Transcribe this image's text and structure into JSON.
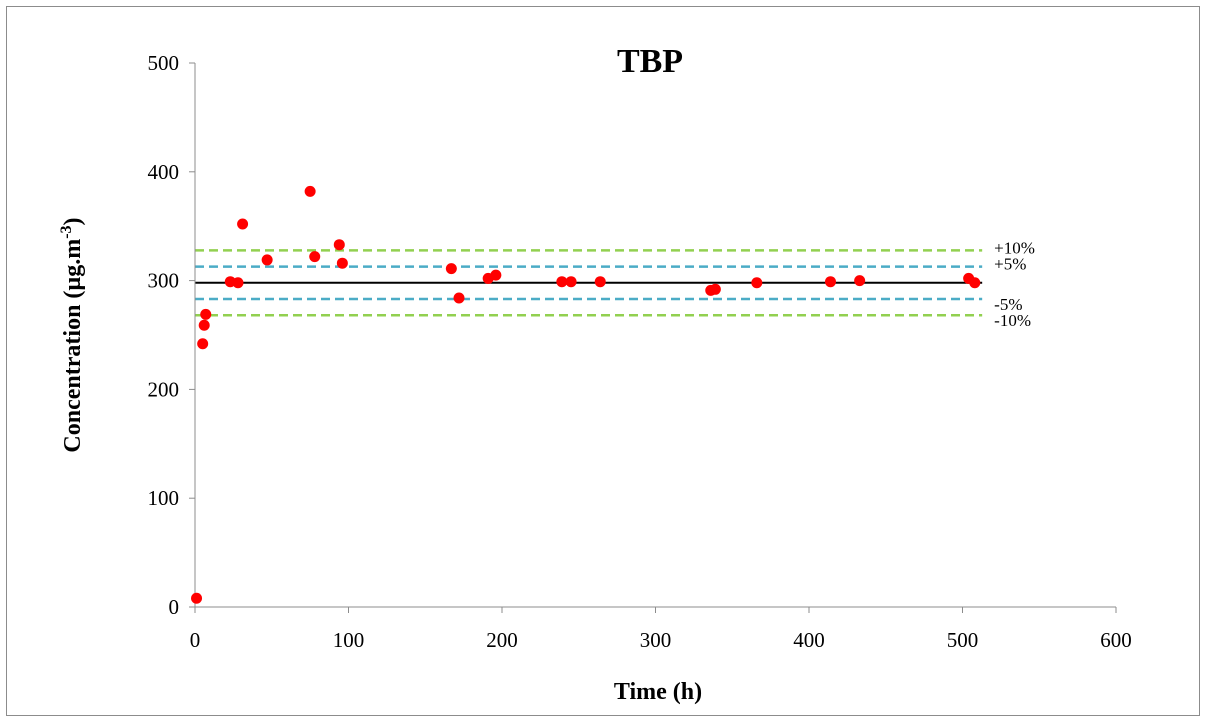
{
  "chart_data": {
    "type": "scatter",
    "title": "TBP",
    "xlabel": "Time (h)",
    "ylabel_main": "Concentration (µg.m",
    "ylabel_sup": "-3",
    "ylabel_end": ")",
    "xlim": [
      0,
      600
    ],
    "ylim": [
      0,
      500
    ],
    "x_ticks": [
      0,
      100,
      200,
      300,
      400,
      500,
      600
    ],
    "y_ticks": [
      0,
      100,
      200,
      300,
      400,
      500
    ],
    "grid": false,
    "marker_color": "#ff0000",
    "reference_line": {
      "value": 298,
      "x_range": [
        0,
        505
      ],
      "color": "#000000"
    },
    "bands": [
      {
        "label": "+10%",
        "value": 327.8,
        "color": "#92d050"
      },
      {
        "label": "+5%",
        "value": 312.9,
        "color": "#4bacc6"
      },
      {
        "label": "-5%",
        "value": 283.1,
        "color": "#4bacc6"
      },
      {
        "label": "-10%",
        "value": 268.2,
        "color": "#92d050"
      }
    ],
    "points": [
      [
        1,
        8
      ],
      [
        5,
        242
      ],
      [
        6,
        259
      ],
      [
        7,
        269
      ],
      [
        23,
        299
      ],
      [
        28,
        298
      ],
      [
        31,
        352
      ],
      [
        47,
        319
      ],
      [
        75,
        382
      ],
      [
        78,
        322
      ],
      [
        94,
        333
      ],
      [
        96,
        316
      ],
      [
        167,
        311
      ],
      [
        172,
        284
      ],
      [
        191,
        302
      ],
      [
        196,
        305
      ],
      [
        239,
        299
      ],
      [
        245,
        299
      ],
      [
        264,
        299
      ],
      [
        336,
        291
      ],
      [
        339,
        292
      ],
      [
        366,
        298
      ],
      [
        414,
        299
      ],
      [
        433,
        300
      ],
      [
        504,
        302
      ],
      [
        508,
        298
      ]
    ]
  }
}
